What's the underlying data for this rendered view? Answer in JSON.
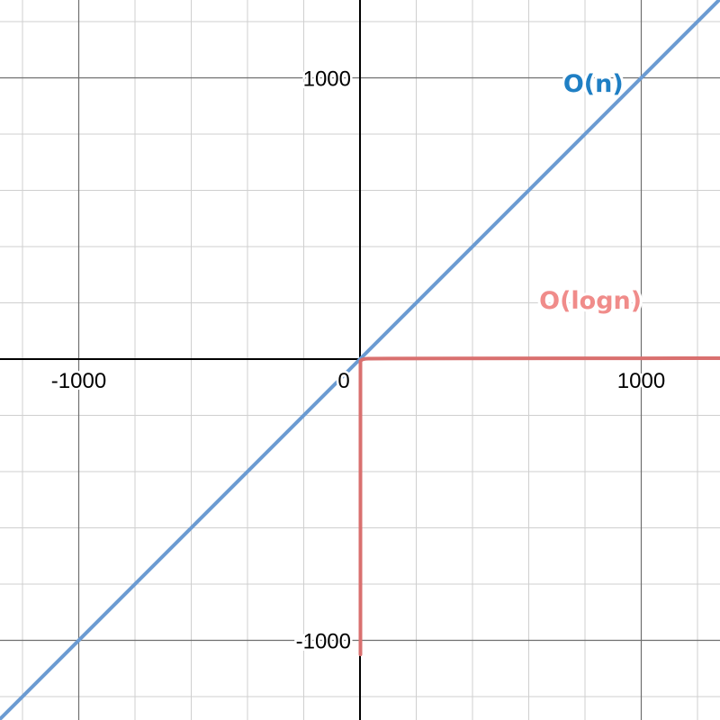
{
  "chart_data": {
    "type": "line",
    "title": "",
    "xlabel": "",
    "ylabel": "",
    "xlim": [
      -1280,
      1280
    ],
    "ylim": [
      -1280,
      1280
    ],
    "major_step": 1000,
    "minor_step": 200,
    "grid": true,
    "axes_through_origin": true,
    "x_ticks": [
      {
        "value": -1000,
        "label": "-1000"
      },
      {
        "value": 0,
        "label": "0"
      },
      {
        "value": 1000,
        "label": "1000"
      }
    ],
    "y_ticks": [
      {
        "value": 1000,
        "label": "1000"
      },
      {
        "value": -1000,
        "label": "-1000"
      }
    ],
    "series": [
      {
        "name": "O(n)",
        "function": "y = x",
        "color": "#6b9bd2",
        "label_color": "#1f7fc4",
        "label_anchor": {
          "x": 740,
          "y": 950
        },
        "points": [
          [
            -1280,
            -1280
          ],
          [
            0,
            0
          ],
          [
            1280,
            1280
          ]
        ]
      },
      {
        "name": "O(logn)",
        "function": "y = log(x)",
        "color": "#d9706f",
        "label_color": "#f08c8a",
        "label_anchor": {
          "x": 730,
          "y": 180
        },
        "points": [
          [
            0.0,
            -1050
          ],
          [
            1e-100,
            -100
          ],
          [
            1e-10,
            -10
          ],
          [
            0.001,
            -3
          ],
          [
            0.01,
            -2
          ],
          [
            0.1,
            -1
          ],
          [
            1,
            0
          ],
          [
            10,
            1
          ],
          [
            100,
            2
          ],
          [
            1000,
            3
          ],
          [
            1280,
            3.1
          ]
        ]
      }
    ]
  }
}
